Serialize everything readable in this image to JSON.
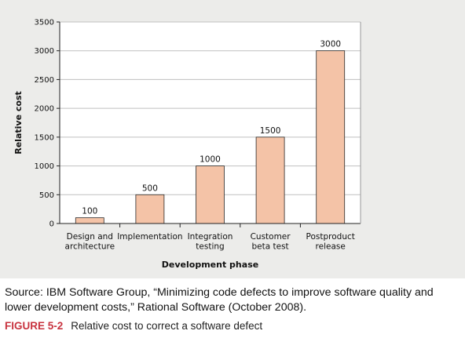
{
  "chart_data": {
    "type": "bar",
    "categories": [
      [
        "Design and",
        "architecture"
      ],
      [
        "Implementation"
      ],
      [
        "Integration",
        "testing"
      ],
      [
        "Customer",
        "beta test"
      ],
      [
        "Postproduct",
        "release"
      ]
    ],
    "values": [
      100,
      500,
      1000,
      1500,
      3000
    ],
    "data_labels": [
      "100",
      "500",
      "1000",
      "1500",
      "3000"
    ],
    "xlabel": "Development phase",
    "ylabel": "Relative cost",
    "ylim": [
      0,
      3500
    ],
    "yticks": [
      0,
      500,
      1000,
      1500,
      2000,
      2500,
      3000,
      3500
    ],
    "ytick_labels": [
      "0",
      "500",
      "1000",
      "1500",
      "2000",
      "2500",
      "3000",
      "3500"
    ],
    "grid": true,
    "colors": {
      "bar_fill": "#f4c3a7",
      "bar_stroke": "#2a2a2a",
      "panel_bg": "#ececea",
      "plot_bg": "#ffffff",
      "caption_accent": "#c8333f"
    }
  },
  "source": {
    "line1": "Source: IBM Software Group, “Minimizing code defects to improve software quality and",
    "line2": "lower development costs,” Rational Software (October 2008)."
  },
  "caption": {
    "figure_number": "FIGURE 5-2",
    "text": "Relative cost to correct a software defect"
  }
}
